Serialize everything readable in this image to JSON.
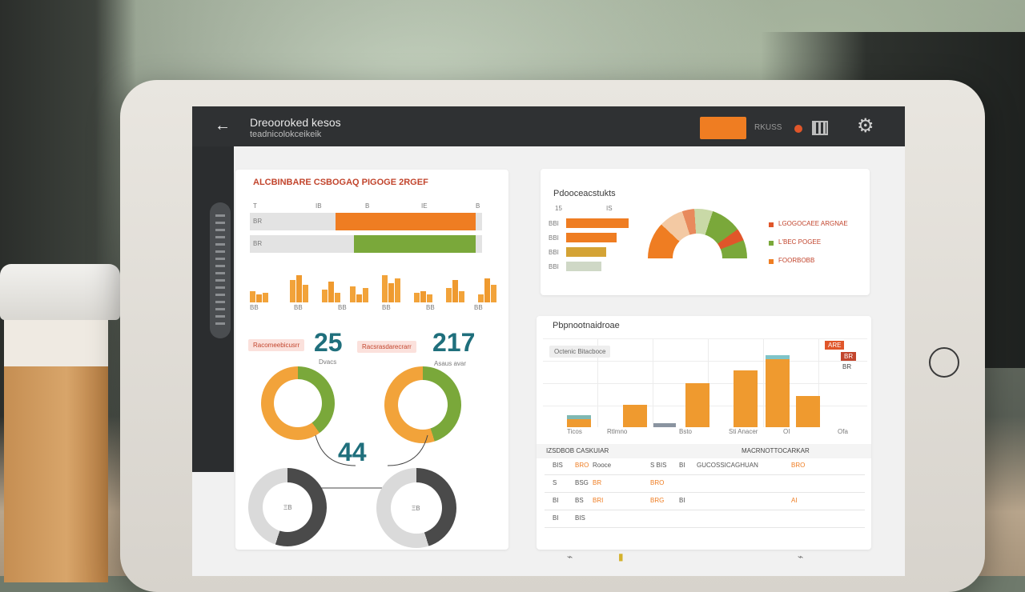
{
  "header": {
    "back_glyph": "←",
    "title": "Dreooroked kesos",
    "subtitle": "teadnicolokceikeik",
    "status_text": "RKUSS",
    "settings_glyph": "⚙"
  },
  "colors": {
    "accent": "#ef7d22",
    "green": "#7aa83a",
    "teal": "#1f6f7c",
    "dark": "#2f3133"
  },
  "left_card": {
    "title": "ALCBINBARE CSBOGAQ PIGOGE 2RGEF",
    "axis_ticks": [
      "T",
      "IB",
      "B",
      "IE",
      "B"
    ],
    "hbars": [
      {
        "label": "BR",
        "fill": 0.63,
        "color": "#ef7d22"
      },
      {
        "label": "BR",
        "fill": 0.55,
        "color": "#7aa83a"
      }
    ],
    "column_groups": [
      "BB",
      "BB",
      "BB",
      "BB",
      "BB",
      "BB"
    ],
    "kpis": [
      {
        "tag": "Racomeebicusrr",
        "value": "25",
        "caption": "Dvacs"
      },
      {
        "tag": "Racsrasdarecrarr",
        "value": "217",
        "caption": "Asaus avar"
      }
    ],
    "center_value": "44",
    "donut_labels": [
      "ΞΒ",
      "ΞΒ"
    ]
  },
  "top_right_card": {
    "title": "Pdooceacstukts",
    "ticks": [
      "15",
      "IS"
    ],
    "bars": [
      {
        "label": "BBI",
        "value": 78,
        "color": "#ef7d22"
      },
      {
        "label": "BBI",
        "value": 63,
        "color": "#ef7d22"
      },
      {
        "label": "BBI",
        "value": 50,
        "color": "#d4a335"
      },
      {
        "label": "BBI",
        "value": 44,
        "color": "#cfd8c6"
      }
    ],
    "legend": [
      {
        "label": "LGOGOCAEE ARGNAE",
        "color": "#e0562a"
      },
      {
        "label": "L'BEC POGEE",
        "color": "#7aa83a"
      },
      {
        "label": "FOORBOBB",
        "color": "#ef7d22"
      }
    ]
  },
  "bottom_right_card": {
    "title": "Pbpnootnaidroae",
    "subtitle": "Octenic Bitacboce",
    "legend_badges": [
      "ARE",
      "BR",
      "BR"
    ],
    "columns": [
      {
        "label": "Ticos",
        "value": 8,
        "color": "#ef9a2f",
        "cap": "#7fb8b2"
      },
      {
        "label": "Rtlmno",
        "value": 22,
        "color": "#ef9a2f",
        "cap": null
      },
      {
        "label": "",
        "value": 4,
        "color": "#8a94a0",
        "cap": null
      },
      {
        "label": "Bsto",
        "value": 43,
        "color": "#ef9a2f",
        "cap": null
      },
      {
        "label": "Anacer",
        "value": 55,
        "color": "#ef9a2f",
        "cap": null
      },
      {
        "label": "",
        "value": 66,
        "color": "#ef9a2f",
        "cap": "#7fc4c8"
      },
      {
        "label": "",
        "value": 30,
        "color": "#ef9a2f",
        "cap": null
      }
    ],
    "x_labels": [
      "Ticos",
      "Rtlmno",
      "Bsto",
      "Sti Anacer",
      "OI",
      "Ofa"
    ],
    "table_headers": [
      "IZSDBOB CASKUIAR",
      "MACRNOTTOCARKAR"
    ],
    "table_rows": [
      [
        "BIS",
        "BRO",
        "Rooce",
        "S BIS",
        "BI",
        "GUCOSSICAGHUAN",
        "BRO"
      ],
      [
        "S",
        "BSG",
        "BR",
        "BRO",
        "",
        "",
        ""
      ],
      [
        "BI",
        "BS",
        "BRI",
        "BRG",
        "BI",
        "",
        "AI"
      ],
      [
        "BI",
        "BIS",
        "",
        "",
        "",
        "",
        ""
      ]
    ],
    "footer_glyphs": [
      "⌁",
      "▮",
      "⌁"
    ]
  }
}
